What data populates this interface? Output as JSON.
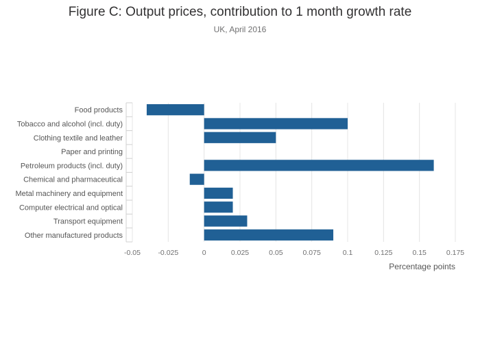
{
  "title": "Figure C: Output prices, contribution to 1 month growth rate",
  "subtitle": "UK, April 2016",
  "colors": {
    "bar": "#206095",
    "grid": "#e4e4e4",
    "text": "#707071"
  },
  "chart_data": {
    "type": "bar",
    "orientation": "horizontal",
    "title": "Figure C: Output prices, contribution to 1 month growth rate",
    "subtitle": "UK, April 2016",
    "xlabel": "Percentage points",
    "ylabel": "",
    "xlim": [
      -0.05,
      0.175
    ],
    "xticks": [
      -0.05,
      -0.025,
      0,
      0.025,
      0.05,
      0.075,
      0.1,
      0.125,
      0.15,
      0.175
    ],
    "xtick_labels": [
      "-0.05",
      "-0.025",
      "0",
      "0.025",
      "0.05",
      "0.075",
      "0.1",
      "0.125",
      "0.15",
      "0.175"
    ],
    "grid": true,
    "categories": [
      "Food products",
      "Tobacco and alcohol (incl. duty)",
      "Clothing textile and leather",
      "Paper and printing",
      "Petroleum products (incl. duty)",
      "Chemical and pharmaceutical",
      "Metal machinery and equipment",
      "Computer electrical and optical",
      "Transport equipment",
      "Other manufactured products"
    ],
    "values": [
      -0.04,
      0.1,
      0.05,
      0,
      0.16,
      -0.01,
      0.02,
      0.02,
      0.03,
      0.09
    ]
  }
}
